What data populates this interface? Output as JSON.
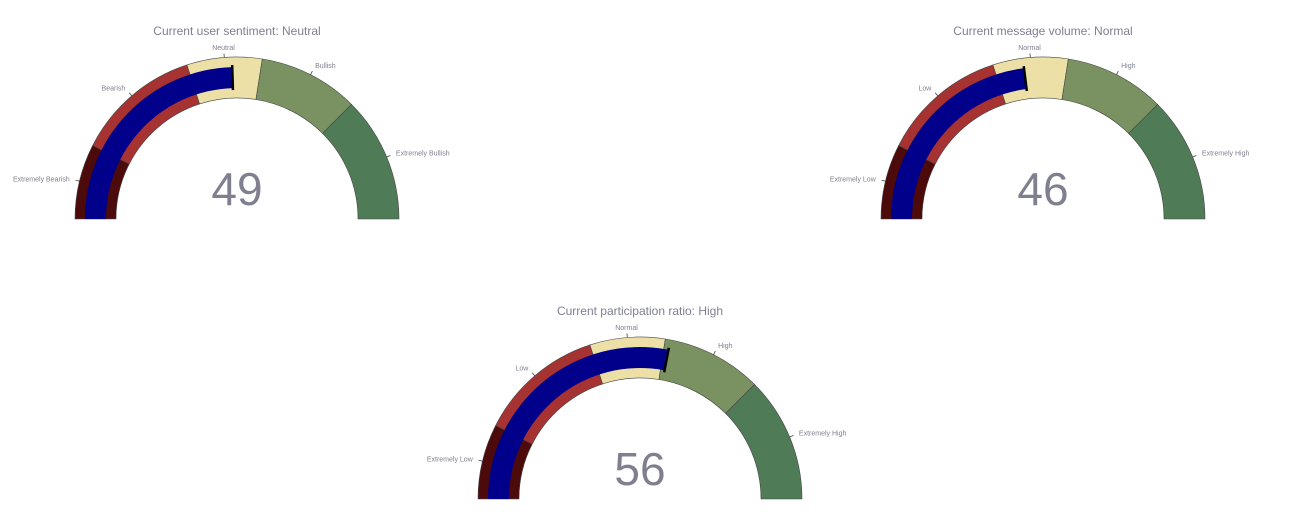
{
  "chart_data": [
    {
      "type": "gauge",
      "title": "Current user sentiment: Neutral",
      "value": 49,
      "range": [
        0,
        100
      ],
      "threshold": 49,
      "bar_color": "#00008b",
      "threshold_color": "#000000",
      "bands": [
        {
          "label": "Extremely Bearish",
          "from": 0,
          "to": 15,
          "color": "#4d0a0a"
        },
        {
          "label": "Bearish",
          "from": 15,
          "to": 40,
          "color": "#a63232"
        },
        {
          "label": "Neutral",
          "from": 40,
          "to": 55,
          "color": "#ede0a6"
        },
        {
          "label": "Bullish",
          "from": 55,
          "to": 75,
          "color": "#7a9262"
        },
        {
          "label": "Extremely Bullish",
          "from": 75,
          "to": 100,
          "color": "#4f7b57"
        }
      ],
      "ticks": [
        {
          "label": "Extremely Bearish",
          "value": 7.5
        },
        {
          "label": "Bearish",
          "value": 27.5
        },
        {
          "label": "Neutral",
          "value": 47.5
        },
        {
          "label": "Bullish",
          "value": 65
        },
        {
          "label": "Extremely Bullish",
          "value": 87.5
        }
      ]
    },
    {
      "type": "gauge",
      "title": "Current message volume: Normal",
      "value": 46,
      "range": [
        0,
        100
      ],
      "threshold": 46,
      "bar_color": "#00008b",
      "threshold_color": "#000000",
      "bands": [
        {
          "label": "Extremely Low",
          "from": 0,
          "to": 15,
          "color": "#4d0a0a"
        },
        {
          "label": "Low",
          "from": 15,
          "to": 40,
          "color": "#a63232"
        },
        {
          "label": "Normal",
          "from": 40,
          "to": 55,
          "color": "#ede0a6"
        },
        {
          "label": "High",
          "from": 55,
          "to": 75,
          "color": "#7a9262"
        },
        {
          "label": "Extremely High",
          "from": 75,
          "to": 100,
          "color": "#4f7b57"
        }
      ],
      "ticks": [
        {
          "label": "Extremely Low",
          "value": 7.5
        },
        {
          "label": "Low",
          "value": 27.5
        },
        {
          "label": "Normal",
          "value": 47.5
        },
        {
          "label": "High",
          "value": 65
        },
        {
          "label": "Extremely High",
          "value": 87.5
        }
      ]
    },
    {
      "type": "gauge",
      "title": "Current participation ratio: High",
      "value": 56,
      "range": [
        0,
        100
      ],
      "threshold": 56,
      "bar_color": "#00008b",
      "threshold_color": "#000000",
      "bands": [
        {
          "label": "Extremely Low",
          "from": 0,
          "to": 15,
          "color": "#4d0a0a"
        },
        {
          "label": "Low",
          "from": 15,
          "to": 40,
          "color": "#a63232"
        },
        {
          "label": "Normal",
          "from": 40,
          "to": 55,
          "color": "#ede0a6"
        },
        {
          "label": "High",
          "from": 55,
          "to": 75,
          "color": "#7a9262"
        },
        {
          "label": "Extremely High",
          "from": 75,
          "to": 100,
          "color": "#4f7b57"
        }
      ],
      "ticks": [
        {
          "label": "Extremely Low",
          "value": 7.5
        },
        {
          "label": "Low",
          "value": 27.5
        },
        {
          "label": "Normal",
          "value": 47.5
        },
        {
          "label": "High",
          "value": 65
        },
        {
          "label": "Extremely High",
          "value": 87.5
        }
      ]
    }
  ]
}
